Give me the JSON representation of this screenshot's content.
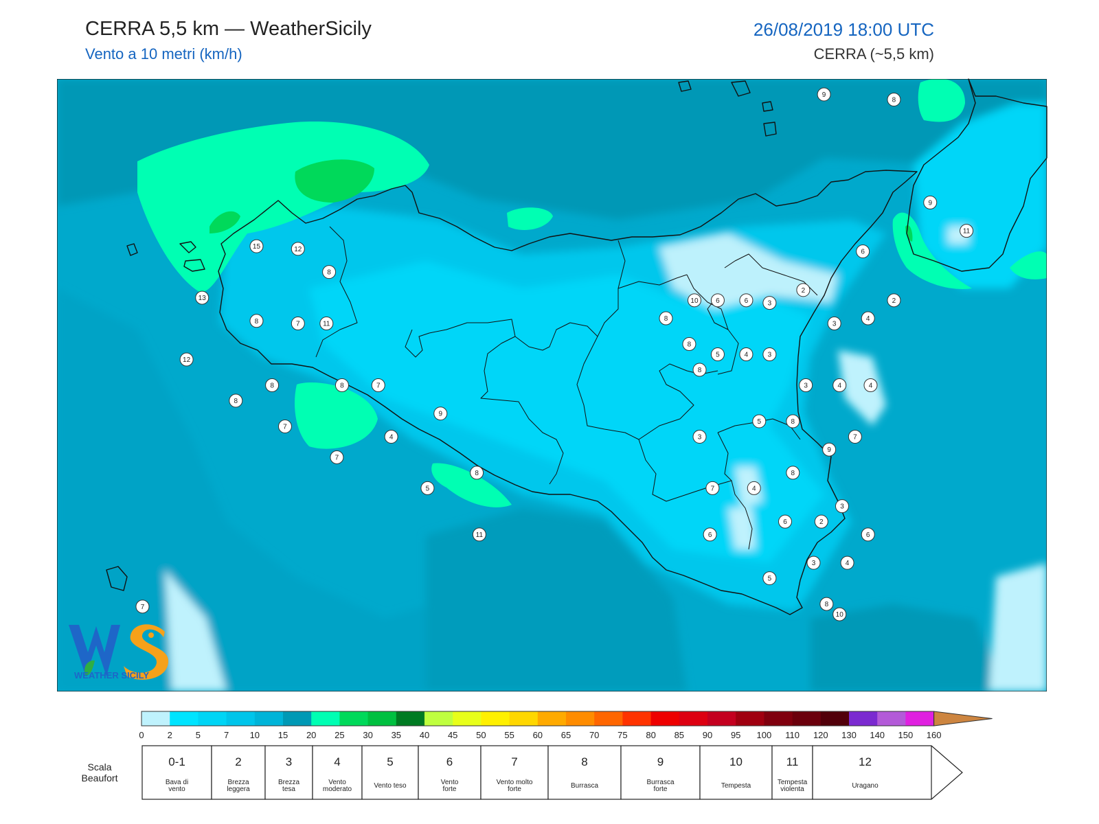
{
  "header": {
    "title": "CERRA 5,5 km — WeatherSicily",
    "subtitle": "Vento a 10 metri (km/h)",
    "datetime": "26/08/2019 18:00 UTC",
    "model": "CERRA (~5,5 km)"
  },
  "logo": {
    "text": "WEATHER SICILY",
    "icon": "ws-logo-icon"
  },
  "colorbar": {
    "ticks": [
      "0",
      "2",
      "5",
      "7",
      "10",
      "15",
      "20",
      "25",
      "30",
      "35",
      "40",
      "45",
      "50",
      "55",
      "60",
      "65",
      "70",
      "75",
      "80",
      "85",
      "90",
      "95",
      "100",
      "110",
      "120",
      "130",
      "140",
      "150",
      "160"
    ],
    "colors": [
      "#bff2fd",
      "#00e4ff",
      "#00d5f5",
      "#00c5ea",
      "#00b4d8",
      "#0099b5",
      "#00ffb3",
      "#00d95a",
      "#00c040",
      "#007b22",
      "#bfff3f",
      "#e8ff1a",
      "#fff000",
      "#ffd700",
      "#ffaa00",
      "#ff8c00",
      "#ff6600",
      "#ff3300",
      "#ee0000",
      "#dd0011",
      "#c4001f",
      "#a00010",
      "#80000e",
      "#6b000c",
      "#52000a",
      "#7b2ad0",
      "#b35ad8",
      "#e020e0",
      "#808080",
      "#5a5a5a",
      "#000000",
      "#8a4a2a",
      "#cd8540"
    ]
  },
  "beaufort": {
    "label_line1": "Scala",
    "label_line2": "Beaufort",
    "classes": [
      {
        "num": "0-1",
        "desc": [
          "Bava di",
          "vento"
        ]
      },
      {
        "num": "2",
        "desc": [
          "Brezza",
          "leggera"
        ]
      },
      {
        "num": "3",
        "desc": [
          "Brezza",
          "tesa"
        ]
      },
      {
        "num": "4",
        "desc": [
          "Vento",
          "moderato"
        ]
      },
      {
        "num": "5",
        "desc": [
          "Vento teso"
        ]
      },
      {
        "num": "6",
        "desc": [
          "Vento",
          "forte"
        ]
      },
      {
        "num": "7",
        "desc": [
          "Vento molto",
          "forte"
        ]
      },
      {
        "num": "8",
        "desc": [
          "Burrasca"
        ]
      },
      {
        "num": "9",
        "desc": [
          "Burrasca",
          "forte"
        ]
      },
      {
        "num": "10",
        "desc": [
          "Tempesta"
        ]
      },
      {
        "num": "11",
        "desc": [
          "Tempesta",
          "violenta"
        ]
      },
      {
        "num": "12",
        "desc": [
          "Uragano"
        ]
      }
    ]
  },
  "stations": [
    {
      "v": "9",
      "lon": 14.96,
      "lat": 38.79
    },
    {
      "v": "8",
      "lon": 15.23,
      "lat": 38.77
    },
    {
      "v": "9",
      "lon": 15.37,
      "lat": 38.37
    },
    {
      "v": "11",
      "lon": 15.51,
      "lat": 38.26
    },
    {
      "v": "15",
      "lon": 12.77,
      "lat": 38.2
    },
    {
      "v": "12",
      "lon": 12.93,
      "lat": 38.19
    },
    {
      "v": "8",
      "lon": 13.05,
      "lat": 38.1
    },
    {
      "v": "6",
      "lon": 15.11,
      "lat": 38.18
    },
    {
      "v": "13",
      "lon": 12.56,
      "lat": 38.0
    },
    {
      "v": "10",
      "lon": 14.46,
      "lat": 37.99
    },
    {
      "v": "6",
      "lon": 14.55,
      "lat": 37.99
    },
    {
      "v": "6",
      "lon": 14.66,
      "lat": 37.99
    },
    {
      "v": "3",
      "lon": 14.75,
      "lat": 37.98
    },
    {
      "v": "2",
      "lon": 14.88,
      "lat": 38.03
    },
    {
      "v": "2",
      "lon": 15.23,
      "lat": 37.99
    },
    {
      "v": "8",
      "lon": 12.77,
      "lat": 37.91
    },
    {
      "v": "7",
      "lon": 12.93,
      "lat": 37.9
    },
    {
      "v": "11",
      "lon": 13.04,
      "lat": 37.9
    },
    {
      "v": "8",
      "lon": 14.35,
      "lat": 37.92
    },
    {
      "v": "4",
      "lon": 15.13,
      "lat": 37.92
    },
    {
      "v": "3",
      "lon": 15.0,
      "lat": 37.9
    },
    {
      "v": "8",
      "lon": 14.44,
      "lat": 37.82
    },
    {
      "v": "5",
      "lon": 14.55,
      "lat": 37.78
    },
    {
      "v": "4",
      "lon": 14.66,
      "lat": 37.78
    },
    {
      "v": "3",
      "lon": 14.75,
      "lat": 37.78
    },
    {
      "v": "12",
      "lon": 12.5,
      "lat": 37.76
    },
    {
      "v": "8",
      "lon": 14.48,
      "lat": 37.72
    },
    {
      "v": "8",
      "lon": 12.83,
      "lat": 37.66
    },
    {
      "v": "8",
      "lon": 13.1,
      "lat": 37.66
    },
    {
      "v": "7",
      "lon": 13.24,
      "lat": 37.66
    },
    {
      "v": "3",
      "lon": 14.89,
      "lat": 37.66
    },
    {
      "v": "4",
      "lon": 15.02,
      "lat": 37.66
    },
    {
      "v": "4",
      "lon": 15.14,
      "lat": 37.66
    },
    {
      "v": "8",
      "lon": 12.69,
      "lat": 37.6
    },
    {
      "v": "9",
      "lon": 13.48,
      "lat": 37.55
    },
    {
      "v": "7",
      "lon": 12.88,
      "lat": 37.5
    },
    {
      "v": "5",
      "lon": 14.71,
      "lat": 37.52
    },
    {
      "v": "8",
      "lon": 14.84,
      "lat": 37.52
    },
    {
      "v": "4",
      "lon": 13.29,
      "lat": 37.46
    },
    {
      "v": "3",
      "lon": 14.48,
      "lat": 37.46
    },
    {
      "v": "7",
      "lon": 15.08,
      "lat": 37.46
    },
    {
      "v": "9",
      "lon": 14.98,
      "lat": 37.41
    },
    {
      "v": "7",
      "lon": 13.08,
      "lat": 37.38
    },
    {
      "v": "8",
      "lon": 13.62,
      "lat": 37.32
    },
    {
      "v": "8",
      "lon": 14.84,
      "lat": 37.32
    },
    {
      "v": "5",
      "lon": 13.43,
      "lat": 37.26
    },
    {
      "v": "7",
      "lon": 14.53,
      "lat": 37.26
    },
    {
      "v": "4",
      "lon": 14.69,
      "lat": 37.26
    },
    {
      "v": "3",
      "lon": 15.03,
      "lat": 37.19
    },
    {
      "v": "6",
      "lon": 14.81,
      "lat": 37.13
    },
    {
      "v": "2",
      "lon": 14.95,
      "lat": 37.13
    },
    {
      "v": "11",
      "lon": 13.63,
      "lat": 37.08
    },
    {
      "v": "6",
      "lon": 14.52,
      "lat": 37.08
    },
    {
      "v": "6",
      "lon": 15.13,
      "lat": 37.08
    },
    {
      "v": "3",
      "lon": 14.92,
      "lat": 36.97
    },
    {
      "v": "4",
      "lon": 15.05,
      "lat": 36.97
    },
    {
      "v": "5",
      "lon": 14.75,
      "lat": 36.91
    },
    {
      "v": "7",
      "lon": 12.33,
      "lat": 36.8
    },
    {
      "v": "8",
      "lon": 14.97,
      "lat": 36.81
    },
    {
      "v": "10",
      "lon": 15.02,
      "lat": 36.77
    }
  ]
}
